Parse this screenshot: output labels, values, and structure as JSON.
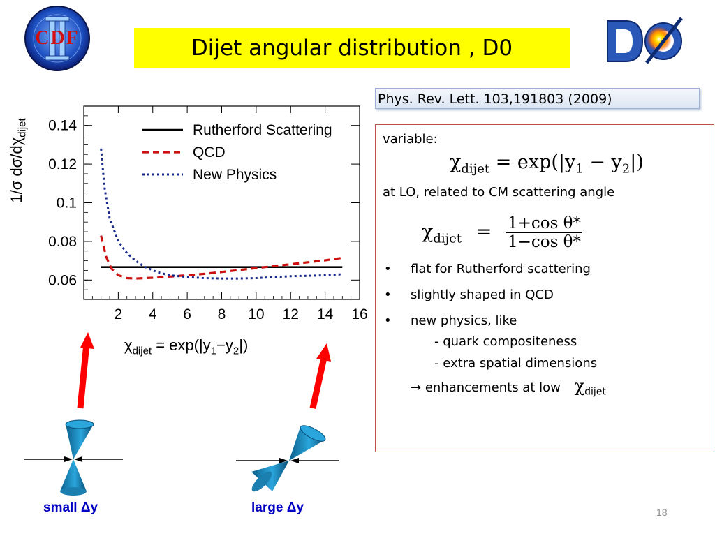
{
  "slide": {
    "title": "Dijet angular distribution , D0",
    "reference": "Phys. Rev. Lett.  103,191803   (2009)",
    "page_number": "18"
  },
  "logos": {
    "left_text": "CDF",
    "left_numeral": "II",
    "right_text": "DØ"
  },
  "content": {
    "variable_label": "variable:",
    "formula1": {
      "lhs": "χ",
      "lhs_sub": "dijet",
      "rhs": " = exp(|y",
      "y1_sub": "1",
      "mid": " − y",
      "y2_sub": "2",
      "end": "|)"
    },
    "lo_text": "at LO, related to CM scattering angle",
    "formula2": {
      "lhs": "χ",
      "lhs_sub": "dijet",
      "eq": "=",
      "numerator": "1+cos θ*",
      "denominator": "1−cos θ*"
    },
    "bullets": [
      {
        "marker": "•",
        "text": "flat for Rutherford scattering"
      },
      {
        "marker": "•",
        "text": "slightly shaped in QCD"
      },
      {
        "marker": "•",
        "text": "new physics, like"
      }
    ],
    "sub_items": [
      "- quark compositeness",
      "- extra spatial dimensions"
    ],
    "arrow_line": {
      "arrow": "→",
      "text": "enhancements at low",
      "chi": "χ",
      "chi_sub": "dijet"
    }
  },
  "captions": {
    "small": "small Δy",
    "large": "large Δy"
  },
  "colors": {
    "title_bg": "#ffff00",
    "rutherford": "#000000",
    "qcd": "#cc1111",
    "new_physics": "#1a2a8c",
    "caption": "#0000c0",
    "cone": "#1a8cc4",
    "red_arrow": "#ff0000"
  },
  "chart_data": {
    "type": "line",
    "ylabel": "1/σ  dσ/dχ",
    "ylabel_sub": "dijet",
    "xlabel": "χ",
    "xlabel_sub": "dijet",
    "xlabel_rest": " = exp(|y",
    "xlabel_y1": "1",
    "xlabel_mid": "−y",
    "xlabel_y2": "2",
    "xlabel_end": "|)",
    "xlim": [
      0,
      16
    ],
    "ylim": [
      0.05,
      0.15
    ],
    "xticks": [
      "2",
      "4",
      "6",
      "8",
      "10",
      "12",
      "14",
      "16"
    ],
    "yticks": [
      "0.06",
      "0.08",
      "0.1",
      "0.12",
      "0.14"
    ],
    "legend_position": "top-right",
    "series": [
      {
        "name": "Rutherford Scattering",
        "style": "solid",
        "x": [
          1,
          15
        ],
        "y": [
          0.0667,
          0.0667
        ]
      },
      {
        "name": "QCD",
        "style": "dashed",
        "x": [
          1.0,
          1.3,
          1.6,
          2.0,
          2.5,
          3.0,
          4.0,
          5.0,
          6.0,
          7.0,
          8.0,
          9.0,
          10.0,
          11.0,
          12.0,
          13.0,
          14.0,
          15.0
        ],
        "y": [
          0.083,
          0.072,
          0.066,
          0.0625,
          0.061,
          0.0608,
          0.0612,
          0.0618,
          0.0625,
          0.0632,
          0.0642,
          0.0652,
          0.0662,
          0.0672,
          0.0682,
          0.0692,
          0.0702,
          0.0715
        ]
      },
      {
        "name": "New Physics",
        "style": "dotted",
        "x": [
          1.0,
          1.2,
          1.5,
          2.0,
          2.5,
          3.0,
          3.5,
          4.0,
          4.5,
          5.0,
          6.0,
          7.0,
          8.0,
          9.0,
          10.0,
          11.0,
          12.0,
          13.0,
          14.0,
          15.0
        ],
        "y": [
          0.128,
          0.108,
          0.092,
          0.08,
          0.074,
          0.07,
          0.067,
          0.065,
          0.0635,
          0.0625,
          0.0615,
          0.061,
          0.0608,
          0.0608,
          0.061,
          0.0615,
          0.062,
          0.0622,
          0.0625,
          0.063
        ]
      }
    ]
  }
}
